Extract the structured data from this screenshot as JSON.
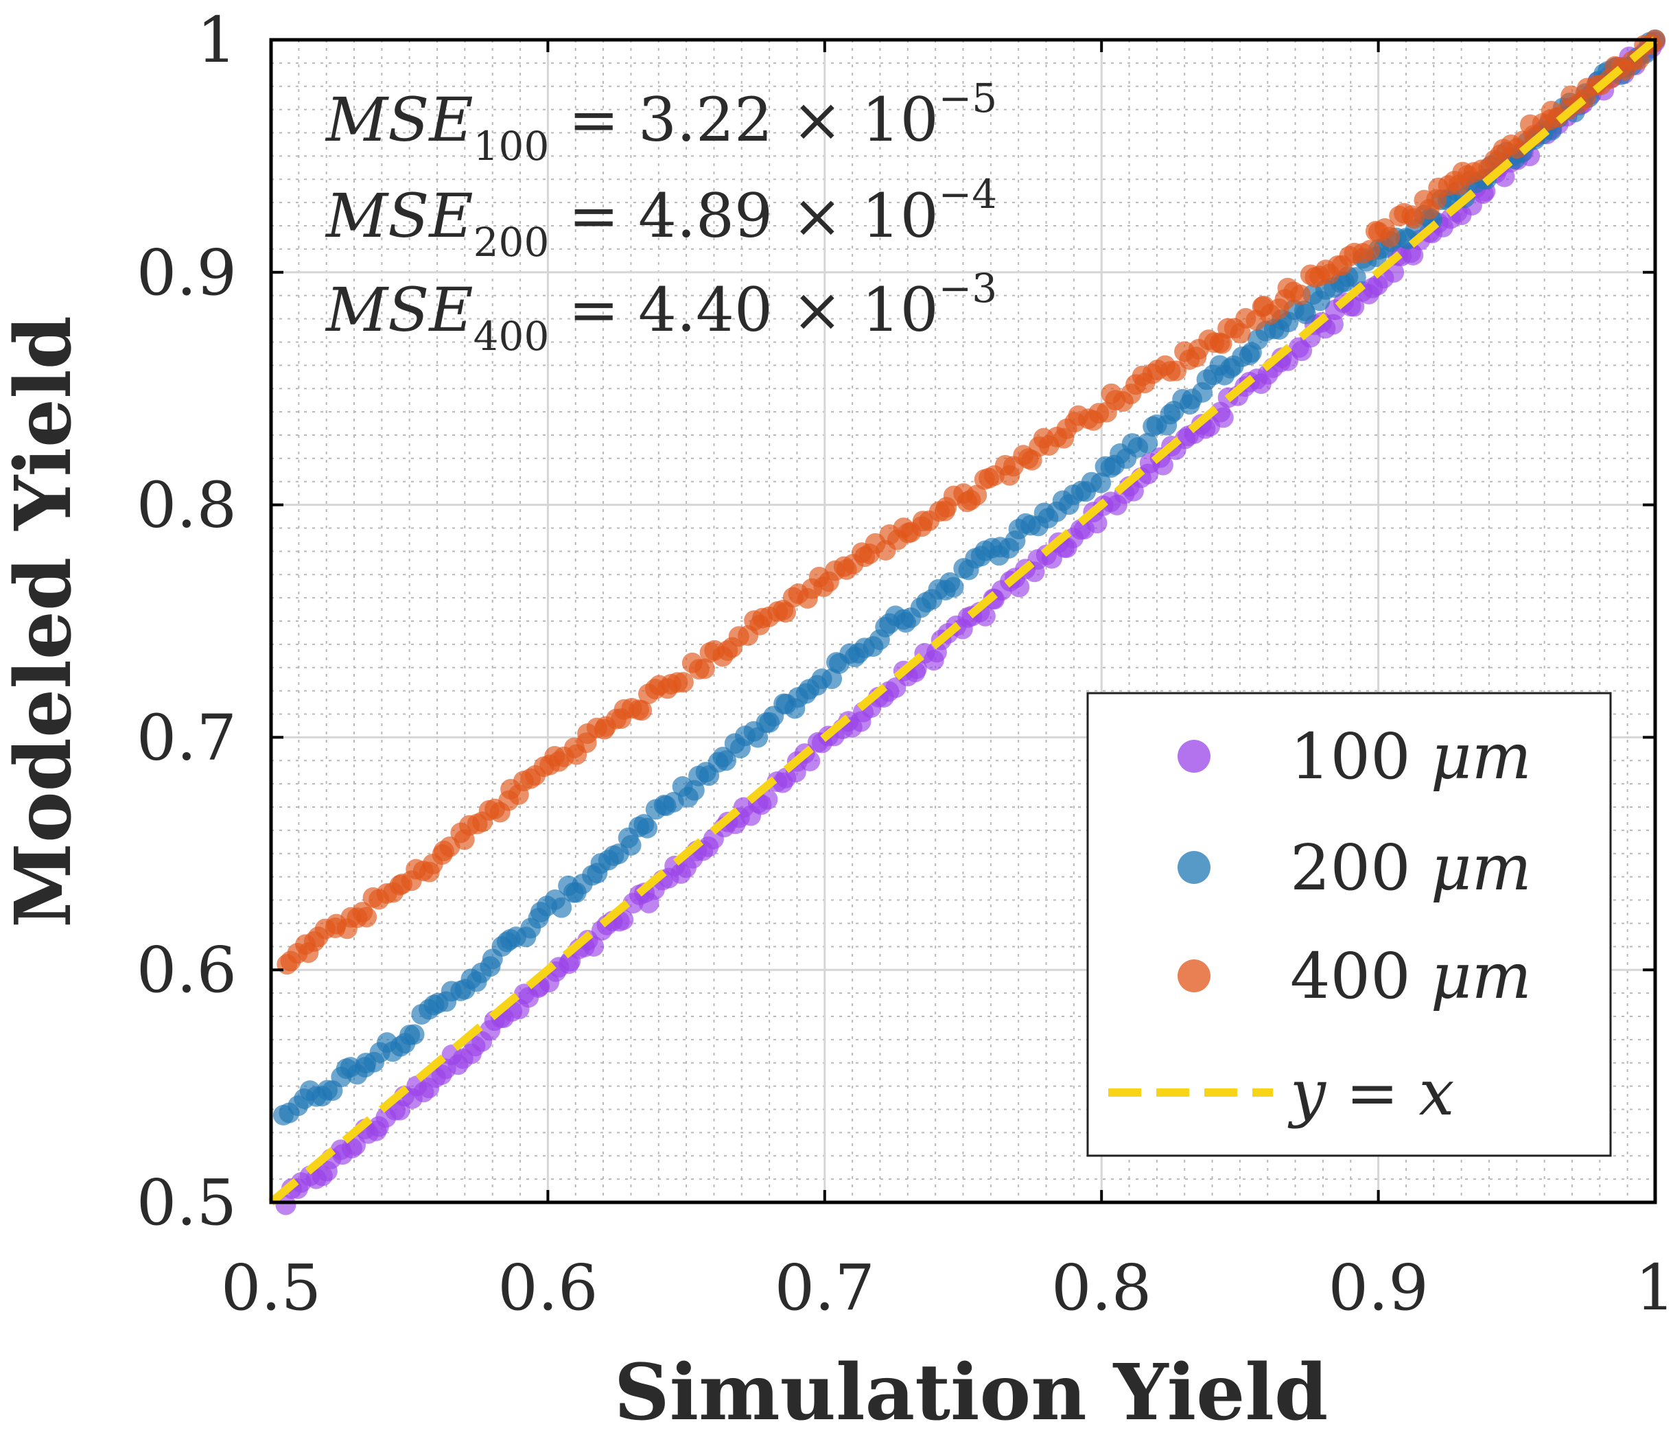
{
  "chart_data": {
    "type": "scatter",
    "xlabel": "Simulation Yield",
    "ylabel": "Modeled Yield",
    "xlim": [
      0.5,
      1.0
    ],
    "ylim": [
      0.5,
      1.0
    ],
    "xticks": [
      "0.5",
      "0.6",
      "0.7",
      "0.8",
      "0.9",
      "1"
    ],
    "yticks": [
      "0.5",
      "0.6",
      "0.7",
      "0.8",
      "0.9",
      "1"
    ],
    "xtick_values": [
      0.5,
      0.6,
      0.7,
      0.8,
      0.9,
      1.0
    ],
    "ytick_values": [
      0.5,
      0.6,
      0.7,
      0.8,
      0.9,
      1.0
    ],
    "grid": true,
    "minor_grid": true,
    "legend_position": "bottom-right",
    "annotations": [
      {
        "name": "MSE",
        "sub": "100",
        "value": "3.22",
        "exp": "−5"
      },
      {
        "name": "MSE",
        "sub": "200",
        "value": "4.89",
        "exp": "−4"
      },
      {
        "name": "MSE",
        "sub": "400",
        "value": "4.40",
        "exp": "−3"
      }
    ],
    "series": [
      {
        "name": "100 μm",
        "label_num": "100",
        "label_unit": "μm",
        "color": "#9b44e8",
        "x_start": 0.505,
        "x_end": 1.0,
        "curve": [
          [
            0.505,
            0.5
          ],
          [
            0.6,
            0.595
          ],
          [
            0.7,
            0.697
          ],
          [
            0.8,
            0.797
          ],
          [
            0.9,
            0.897
          ],
          [
            1.0,
            1.0
          ]
        ]
      },
      {
        "name": "200 μm",
        "label_num": "200",
        "label_unit": "μm",
        "color": "#1f77b4",
        "x_start": 0.505,
        "x_end": 1.0,
        "curve": [
          [
            0.505,
            0.538
          ],
          [
            0.55,
            0.573
          ],
          [
            0.6,
            0.625
          ],
          [
            0.65,
            0.677
          ],
          [
            0.7,
            0.726
          ],
          [
            0.75,
            0.771
          ],
          [
            0.8,
            0.812
          ],
          [
            0.85,
            0.865
          ],
          [
            0.9,
            0.908
          ],
          [
            0.95,
            0.952
          ],
          [
            1.0,
            1.0
          ]
        ]
      },
      {
        "name": "400 μm",
        "label_num": "400",
        "label_unit": "μm",
        "color": "#e0561a",
        "x_start": 0.505,
        "x_end": 1.0,
        "curve": [
          [
            0.505,
            0.603
          ],
          [
            0.55,
            0.638
          ],
          [
            0.6,
            0.688
          ],
          [
            0.65,
            0.727
          ],
          [
            0.7,
            0.768
          ],
          [
            0.75,
            0.803
          ],
          [
            0.8,
            0.842
          ],
          [
            0.85,
            0.877
          ],
          [
            0.9,
            0.915
          ],
          [
            0.95,
            0.956
          ],
          [
            1.0,
            1.0
          ]
        ]
      }
    ],
    "reference_line": {
      "name": "y = x",
      "label": "y = x",
      "color": "#f7d417",
      "style": "dashed",
      "x": [
        0.5,
        1.0
      ],
      "y": [
        0.5,
        1.0
      ]
    }
  }
}
